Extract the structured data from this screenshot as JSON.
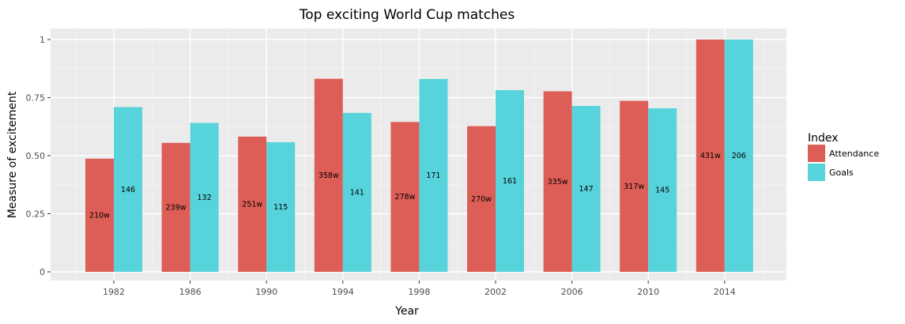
{
  "chart_data": {
    "type": "bar",
    "title": "Top exciting World Cup matches",
    "xlabel": "Year",
    "ylabel": "Measure of excitement",
    "categories": [
      "1982",
      "1986",
      "1990",
      "1994",
      "1998",
      "2002",
      "2006",
      "2010",
      "2014"
    ],
    "ylim": [
      0,
      1
    ],
    "yticks": [
      0,
      0.25,
      0.5,
      0.75,
      1
    ],
    "ytick_labels": [
      "0",
      "0.25",
      "0.50",
      "0.75",
      "1"
    ],
    "grid": true,
    "legend": {
      "title": "Index",
      "position": "right"
    },
    "series": [
      {
        "name": "Attendance",
        "color": "#dd5e56",
        "values": [
          0.487,
          0.555,
          0.582,
          0.831,
          0.645,
          0.627,
          0.777,
          0.736,
          1.0
        ],
        "labels": [
          "210w",
          "239w",
          "251w",
          "358w",
          "278w",
          "270w",
          "335w",
          "317w",
          "431w"
        ]
      },
      {
        "name": "Goals",
        "color": "#57d3db",
        "values": [
          0.709,
          0.641,
          0.558,
          0.684,
          0.83,
          0.782,
          0.714,
          0.704,
          1.0
        ],
        "labels": [
          "146",
          "132",
          "115",
          "141",
          "171",
          "161",
          "147",
          "145",
          "206"
        ]
      }
    ]
  }
}
